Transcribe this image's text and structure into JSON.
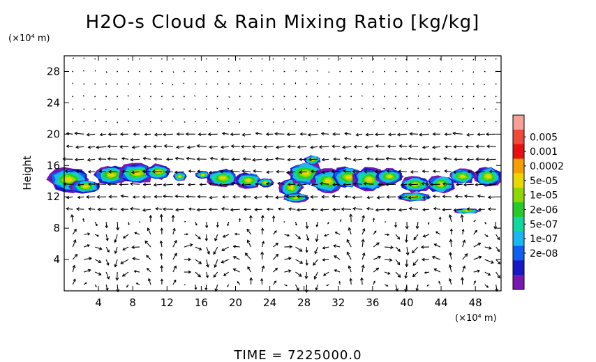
{
  "chart_data": {
    "type": "heatmap",
    "title": "H2O-s Cloud & Rain Mixing Ratio [kg/kg]",
    "ylabel": "Height",
    "y_unit": "(×10⁴ m)",
    "x_unit": "(×10⁴ m)",
    "xlim": [
      0,
      51
    ],
    "ylim": [
      0,
      30
    ],
    "xticks": [
      4,
      8,
      12,
      16,
      20,
      24,
      28,
      32,
      36,
      40,
      44,
      48
    ],
    "yticks": [
      4,
      8,
      12,
      16,
      20,
      24,
      28
    ],
    "colorbar": {
      "labels": [
        "0.005",
        "0.001",
        "0.0002",
        "5e-05",
        "1e-05",
        "2e-06",
        "5e-07",
        "1e-07",
        "2e-08"
      ],
      "colors": [
        "#f7a09a",
        "#f04a3a",
        "#e81010",
        "#f5a000",
        "#e8d800",
        "#8ed800",
        "#28cc28",
        "#10d8a0",
        "#18b8f0",
        "#1060f0",
        "#1818c8",
        "#7818b0"
      ]
    },
    "cloud_layer_height_range": [
      11,
      16.5
    ],
    "time_label": "TIME = 7225000.0",
    "grid": false
  }
}
